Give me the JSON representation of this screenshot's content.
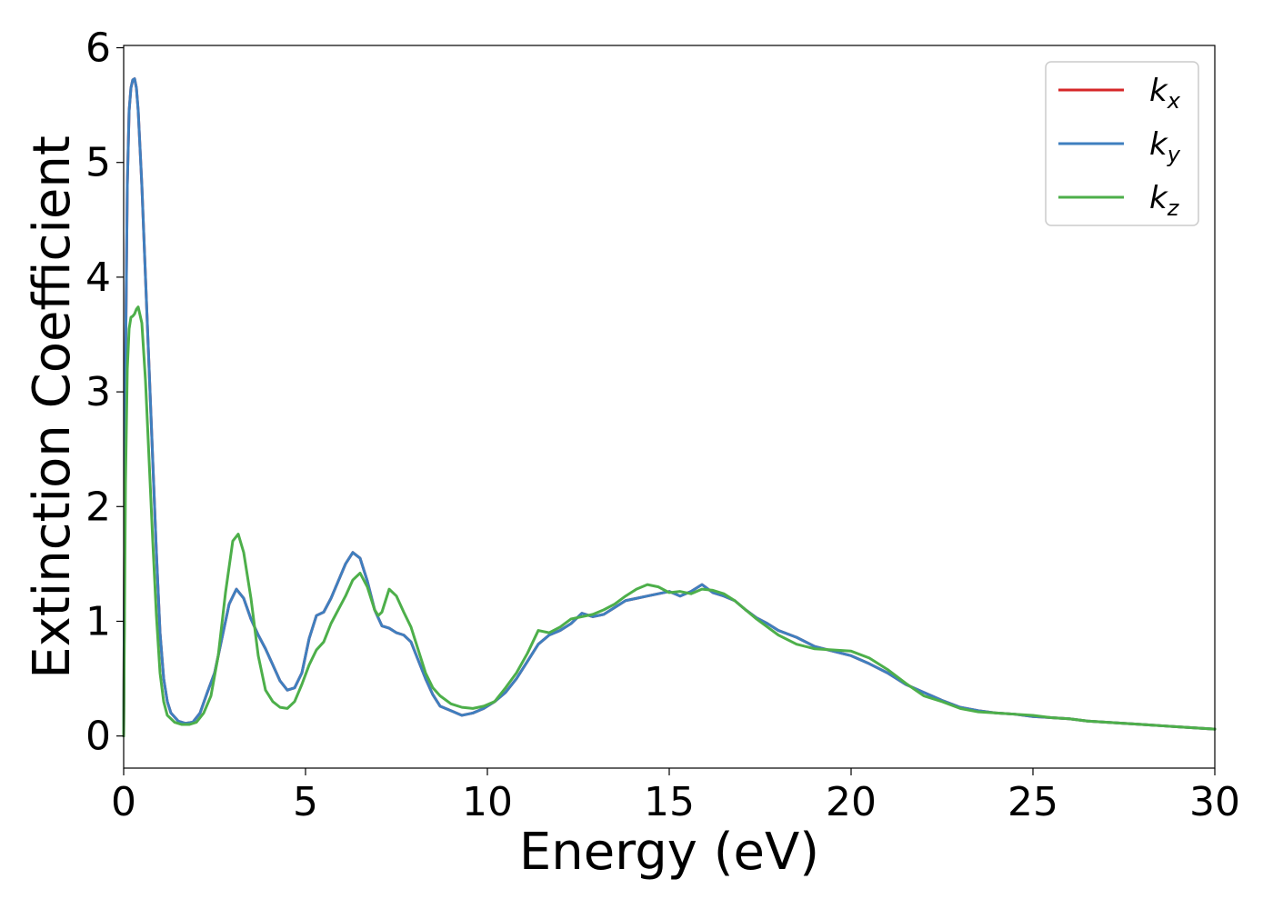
{
  "chart_data": {
    "type": "line",
    "xlabel": "Energy (eV)",
    "ylabel": "Extinction Coefficient",
    "xlim": [
      0,
      30
    ],
    "ylim": [
      -0.28,
      6.02
    ],
    "xticks": [
      0,
      5,
      10,
      15,
      20,
      25,
      30
    ],
    "yticks": [
      0,
      1,
      2,
      3,
      4,
      5,
      6
    ],
    "grid": false,
    "legend_position": "top-right",
    "series": [
      {
        "name": "k_x",
        "base": "k",
        "sub": "x",
        "color": "#d62728",
        "x": [
          0,
          0.05,
          0.1,
          0.15,
          0.2,
          0.25,
          0.3,
          0.35,
          0.4,
          0.5,
          0.6,
          0.7,
          0.8,
          0.9,
          1.0,
          1.1,
          1.2,
          1.3,
          1.5,
          1.7,
          1.9,
          2.1,
          2.3,
          2.5,
          2.7,
          2.9,
          3.1,
          3.3,
          3.5,
          3.7,
          3.9,
          4.1,
          4.3,
          4.5,
          4.7,
          4.9,
          5.1,
          5.3,
          5.5,
          5.7,
          5.9,
          6.1,
          6.3,
          6.5,
          6.7,
          6.9,
          7.1,
          7.3,
          7.5,
          7.7,
          7.9,
          8.1,
          8.3,
          8.5,
          8.7,
          9.0,
          9.3,
          9.6,
          9.9,
          10.2,
          10.5,
          10.8,
          11.1,
          11.4,
          11.7,
          12.0,
          12.3,
          12.6,
          12.9,
          13.2,
          13.5,
          13.8,
          14.1,
          14.4,
          14.7,
          15.0,
          15.3,
          15.6,
          15.9,
          16.2,
          16.5,
          16.8,
          17.1,
          17.4,
          17.7,
          18.0,
          18.5,
          19.0,
          19.5,
          20.0,
          20.5,
          21.0,
          21.5,
          22.0,
          22.5,
          23.0,
          23.5,
          24.0,
          24.5,
          25.0,
          25.5,
          26.0,
          26.5,
          27.0,
          27.5,
          28.0,
          28.5,
          29.0,
          29.5,
          30.0
        ],
        "y": [
          0.0,
          3.2,
          4.8,
          5.45,
          5.65,
          5.72,
          5.73,
          5.65,
          5.45,
          4.8,
          4.0,
          3.2,
          2.4,
          1.6,
          0.9,
          0.5,
          0.3,
          0.2,
          0.13,
          0.11,
          0.12,
          0.2,
          0.38,
          0.55,
          0.85,
          1.15,
          1.28,
          1.2,
          1.02,
          0.88,
          0.76,
          0.62,
          0.48,
          0.4,
          0.42,
          0.55,
          0.85,
          1.05,
          1.08,
          1.2,
          1.35,
          1.5,
          1.6,
          1.55,
          1.35,
          1.1,
          0.96,
          0.94,
          0.9,
          0.88,
          0.82,
          0.66,
          0.5,
          0.36,
          0.26,
          0.22,
          0.18,
          0.2,
          0.24,
          0.3,
          0.38,
          0.5,
          0.65,
          0.8,
          0.88,
          0.92,
          0.98,
          1.07,
          1.04,
          1.06,
          1.12,
          1.18,
          1.2,
          1.22,
          1.24,
          1.26,
          1.22,
          1.26,
          1.32,
          1.25,
          1.22,
          1.18,
          1.1,
          1.03,
          0.98,
          0.92,
          0.86,
          0.78,
          0.74,
          0.7,
          0.63,
          0.55,
          0.45,
          0.38,
          0.31,
          0.25,
          0.22,
          0.2,
          0.19,
          0.17,
          0.16,
          0.15,
          0.13,
          0.12,
          0.11,
          0.1,
          0.09,
          0.08,
          0.07,
          0.06
        ]
      },
      {
        "name": "k_y",
        "base": "k",
        "sub": "y",
        "color": "#3f7fbf",
        "x": [
          0,
          0.05,
          0.1,
          0.15,
          0.2,
          0.25,
          0.3,
          0.35,
          0.4,
          0.5,
          0.6,
          0.7,
          0.8,
          0.9,
          1.0,
          1.1,
          1.2,
          1.3,
          1.5,
          1.7,
          1.9,
          2.1,
          2.3,
          2.5,
          2.7,
          2.9,
          3.1,
          3.3,
          3.5,
          3.7,
          3.9,
          4.1,
          4.3,
          4.5,
          4.7,
          4.9,
          5.1,
          5.3,
          5.5,
          5.7,
          5.9,
          6.1,
          6.3,
          6.5,
          6.7,
          6.9,
          7.1,
          7.3,
          7.5,
          7.7,
          7.9,
          8.1,
          8.3,
          8.5,
          8.7,
          9.0,
          9.3,
          9.6,
          9.9,
          10.2,
          10.5,
          10.8,
          11.1,
          11.4,
          11.7,
          12.0,
          12.3,
          12.6,
          12.9,
          13.2,
          13.5,
          13.8,
          14.1,
          14.4,
          14.7,
          15.0,
          15.3,
          15.6,
          15.9,
          16.2,
          16.5,
          16.8,
          17.1,
          17.4,
          17.7,
          18.0,
          18.5,
          19.0,
          19.5,
          20.0,
          20.5,
          21.0,
          21.5,
          22.0,
          22.5,
          23.0,
          23.5,
          24.0,
          24.5,
          25.0,
          25.5,
          26.0,
          26.5,
          27.0,
          27.5,
          28.0,
          28.5,
          29.0,
          29.5,
          30.0
        ],
        "y": [
          0.0,
          3.2,
          4.8,
          5.45,
          5.65,
          5.72,
          5.73,
          5.65,
          5.45,
          4.8,
          4.0,
          3.2,
          2.4,
          1.6,
          0.9,
          0.5,
          0.3,
          0.2,
          0.13,
          0.11,
          0.12,
          0.2,
          0.38,
          0.55,
          0.85,
          1.15,
          1.28,
          1.2,
          1.02,
          0.88,
          0.76,
          0.62,
          0.48,
          0.4,
          0.42,
          0.55,
          0.85,
          1.05,
          1.08,
          1.2,
          1.35,
          1.5,
          1.6,
          1.55,
          1.35,
          1.1,
          0.96,
          0.94,
          0.9,
          0.88,
          0.82,
          0.66,
          0.5,
          0.36,
          0.26,
          0.22,
          0.18,
          0.2,
          0.24,
          0.3,
          0.38,
          0.5,
          0.65,
          0.8,
          0.88,
          0.92,
          0.98,
          1.07,
          1.04,
          1.06,
          1.12,
          1.18,
          1.2,
          1.22,
          1.24,
          1.26,
          1.22,
          1.26,
          1.32,
          1.25,
          1.22,
          1.18,
          1.1,
          1.03,
          0.98,
          0.92,
          0.86,
          0.78,
          0.74,
          0.7,
          0.63,
          0.55,
          0.45,
          0.38,
          0.31,
          0.25,
          0.22,
          0.2,
          0.19,
          0.17,
          0.16,
          0.15,
          0.13,
          0.12,
          0.11,
          0.1,
          0.09,
          0.08,
          0.07,
          0.06
        ]
      },
      {
        "name": "k_z",
        "base": "k",
        "sub": "z",
        "color": "#4daf4a",
        "x": [
          0,
          0.05,
          0.1,
          0.15,
          0.2,
          0.25,
          0.3,
          0.35,
          0.4,
          0.5,
          0.6,
          0.7,
          0.8,
          0.9,
          1.0,
          1.1,
          1.2,
          1.4,
          1.6,
          1.8,
          2.0,
          2.2,
          2.4,
          2.6,
          2.8,
          3.0,
          3.15,
          3.3,
          3.5,
          3.7,
          3.9,
          4.1,
          4.3,
          4.5,
          4.7,
          4.9,
          5.1,
          5.3,
          5.5,
          5.7,
          5.9,
          6.1,
          6.3,
          6.5,
          6.7,
          6.9,
          7.0,
          7.1,
          7.3,
          7.5,
          7.7,
          7.9,
          8.1,
          8.3,
          8.5,
          8.7,
          9.0,
          9.3,
          9.6,
          9.9,
          10.2,
          10.5,
          10.8,
          11.1,
          11.4,
          11.7,
          12.0,
          12.3,
          12.6,
          12.9,
          13.2,
          13.5,
          13.8,
          14.1,
          14.4,
          14.7,
          15.0,
          15.3,
          15.6,
          15.9,
          16.2,
          16.5,
          16.8,
          17.1,
          17.4,
          17.7,
          18.0,
          18.5,
          19.0,
          19.5,
          20.0,
          20.5,
          21.0,
          21.5,
          22.0,
          22.5,
          23.0,
          23.5,
          24.0,
          24.5,
          25.0,
          25.5,
          26.0,
          26.5,
          27.0,
          27.5,
          28.0,
          28.5,
          29.0,
          29.5,
          30.0
        ],
        "y": [
          0.0,
          2.2,
          3.2,
          3.55,
          3.65,
          3.66,
          3.68,
          3.72,
          3.74,
          3.6,
          3.1,
          2.4,
          1.7,
          1.05,
          0.55,
          0.3,
          0.18,
          0.12,
          0.1,
          0.1,
          0.12,
          0.2,
          0.35,
          0.7,
          1.25,
          1.7,
          1.76,
          1.6,
          1.2,
          0.7,
          0.4,
          0.3,
          0.25,
          0.24,
          0.3,
          0.45,
          0.62,
          0.75,
          0.82,
          0.98,
          1.1,
          1.22,
          1.36,
          1.42,
          1.3,
          1.1,
          1.05,
          1.08,
          1.28,
          1.22,
          1.08,
          0.95,
          0.75,
          0.55,
          0.42,
          0.35,
          0.28,
          0.25,
          0.24,
          0.26,
          0.3,
          0.42,
          0.55,
          0.72,
          0.92,
          0.9,
          0.95,
          1.02,
          1.04,
          1.06,
          1.1,
          1.15,
          1.22,
          1.28,
          1.32,
          1.3,
          1.25,
          1.26,
          1.24,
          1.28,
          1.27,
          1.24,
          1.18,
          1.1,
          1.02,
          0.95,
          0.88,
          0.8,
          0.76,
          0.75,
          0.74,
          0.68,
          0.58,
          0.46,
          0.35,
          0.3,
          0.24,
          0.21,
          0.2,
          0.19,
          0.18,
          0.16,
          0.15,
          0.13,
          0.12,
          0.11,
          0.1,
          0.09,
          0.08,
          0.07,
          0.06
        ]
      }
    ]
  }
}
